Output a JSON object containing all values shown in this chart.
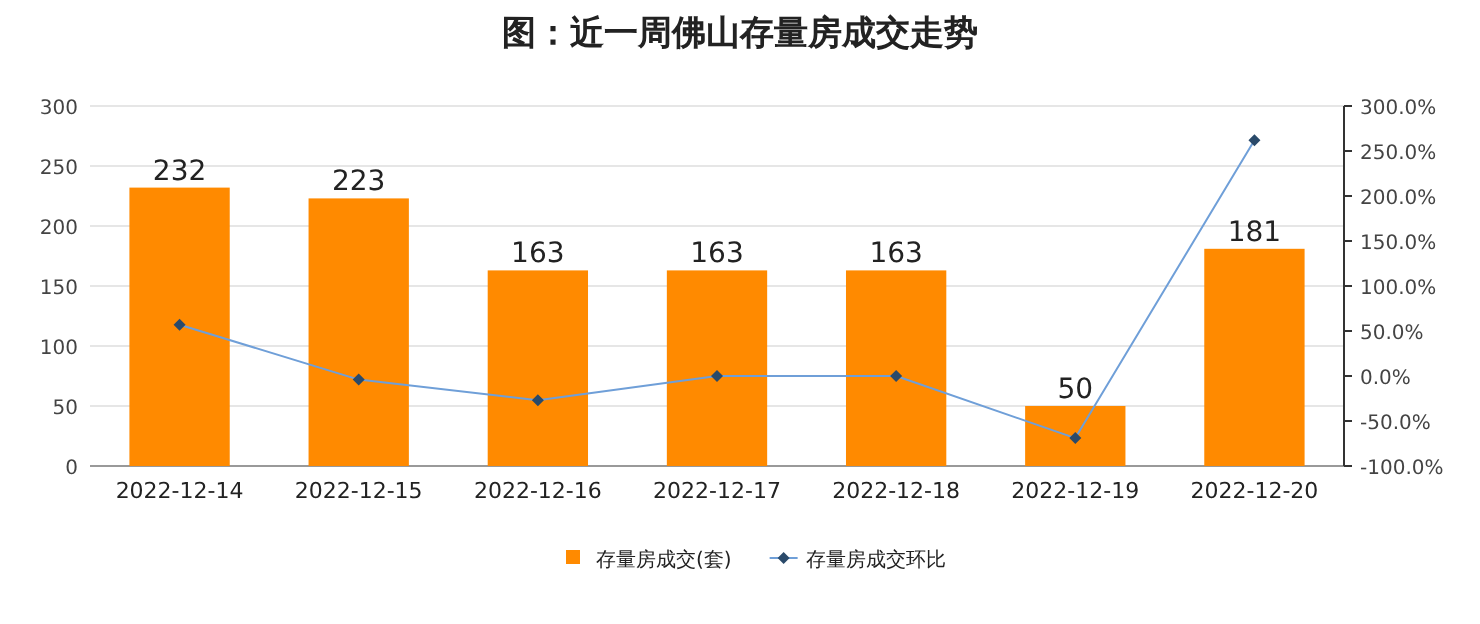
{
  "chart_data": {
    "type": "bar",
    "title": "图：近一周佛山存量房成交走势",
    "categories": [
      "2022-12-14",
      "2022-12-15",
      "2022-12-16",
      "2022-12-17",
      "2022-12-18",
      "2022-12-19",
      "2022-12-20"
    ],
    "series": [
      {
        "name": "存量房成交(套)",
        "color": "#ff8a00",
        "values": [
          232,
          223,
          163,
          163,
          163,
          50,
          181
        ],
        "value_labels": [
          "232",
          "223",
          "163",
          "163",
          "163",
          "50",
          "181"
        ]
      },
      {
        "name": "存量房成交环比",
        "type": "line",
        "axis": "y2",
        "color": "#6f9fd8",
        "marker": "diamond",
        "values": [
          57,
          -4,
          -27,
          0,
          0,
          -69,
          262
        ]
      }
    ],
    "ylim": [
      0,
      300
    ],
    "yticks": [
      0,
      50,
      100,
      150,
      200,
      250,
      300
    ],
    "y2lim": [
      -100,
      300
    ],
    "y2ticks": [
      {
        "value": -100,
        "label": "-100.0%"
      },
      {
        "value": -50,
        "label": "-50.0%"
      },
      {
        "value": 0,
        "label": "0.0%"
      },
      {
        "value": 50,
        "label": "50.0%"
      },
      {
        "value": 100,
        "label": "100.0%"
      },
      {
        "value": 150,
        "label": "150.0%"
      },
      {
        "value": 200,
        "label": "200.0%"
      },
      {
        "value": 250,
        "label": "250.0%"
      },
      {
        "value": 300,
        "label": "300.0%"
      }
    ],
    "grid": "y",
    "legend": "bottom"
  }
}
